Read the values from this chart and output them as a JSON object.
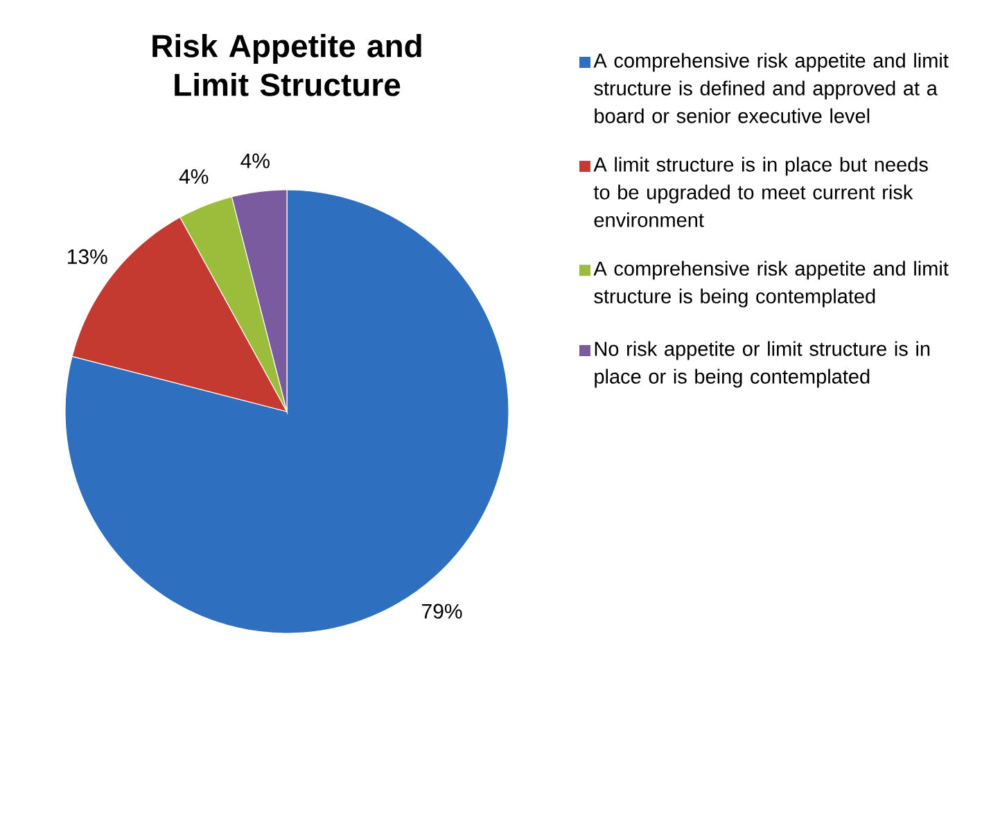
{
  "chart_data": {
    "type": "pie",
    "title": "Risk Appetite and Limit Structure",
    "categories": [
      "A comprehensive risk appetite and limit structure is defined and approved at a board or senior executive level",
      "A limit structure is in place but needs to be upgraded to meet current risk environment",
      "A comprehensive risk appetite and limit structure is being contemplated",
      "No risk appetite or limit structure is in place or is being contemplated"
    ],
    "values": [
      79,
      13,
      4,
      4
    ],
    "colors": [
      "#2f6fbf",
      "#c43a31",
      "#9cbc3c",
      "#7a5ba0"
    ],
    "value_labels": [
      "79%",
      "13%",
      "4%",
      "4%"
    ],
    "legend": "right"
  }
}
